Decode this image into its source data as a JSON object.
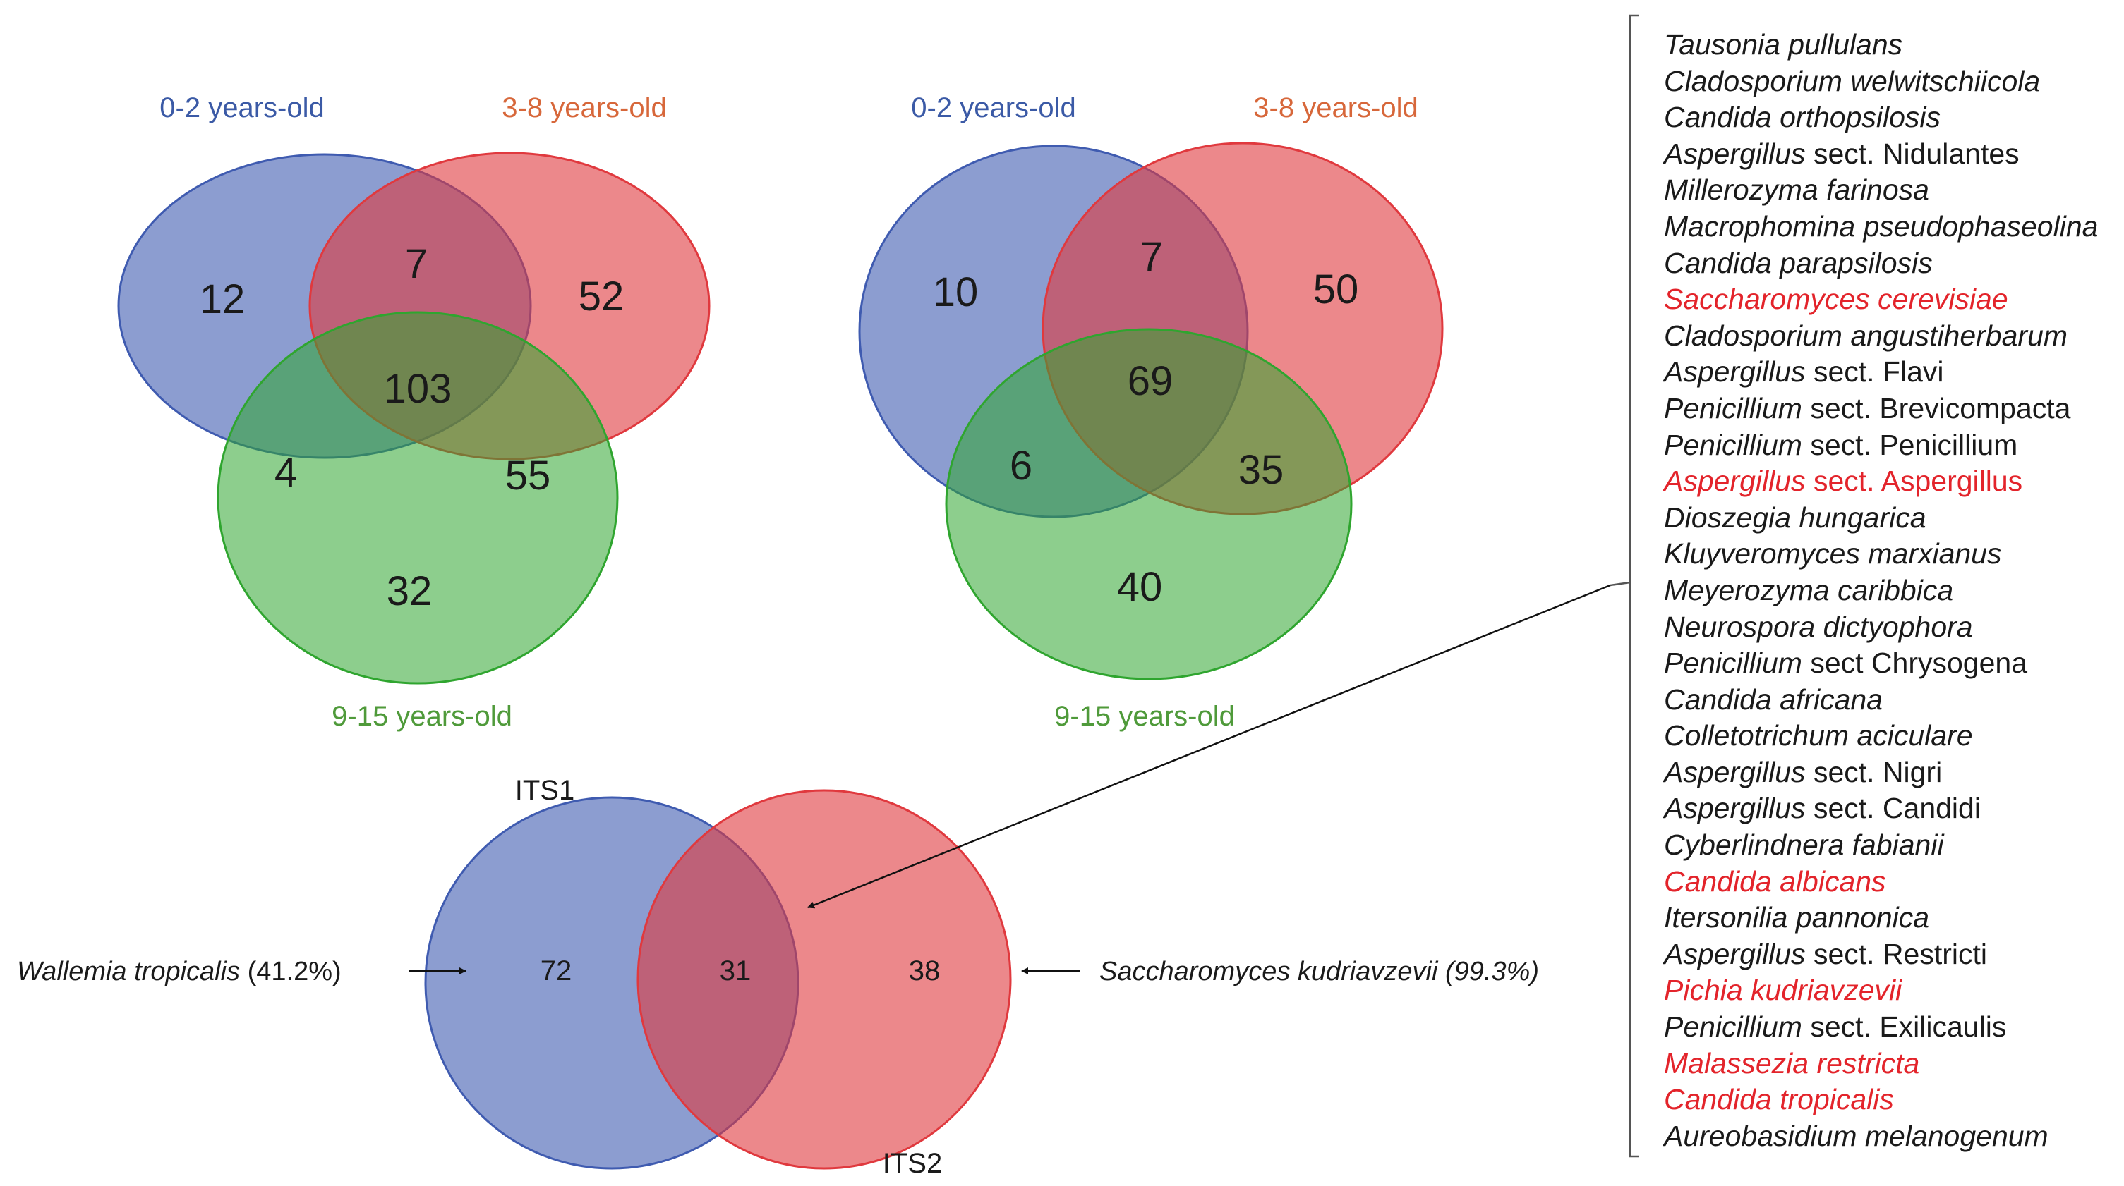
{
  "colors": {
    "blue": "#3f5bb0",
    "red": "#e0393e",
    "green": "#2fa52f",
    "blue_text": "#3b5aa6",
    "orange_text": "#d7673a",
    "green_text": "#4f9a3a",
    "highlight": "#e3242b"
  },
  "venn_left": {
    "labels": {
      "a": "0-2 years-old",
      "b": "3-8 years-old",
      "c": "9-15 years-old"
    },
    "counts": {
      "a_only": "12",
      "ab": "7",
      "b_only": "52",
      "abc": "103",
      "ac": "4",
      "bc": "55",
      "c_only": "32"
    }
  },
  "venn_right": {
    "labels": {
      "a": "0-2 years-old",
      "b": "3-8 years-old",
      "c": "9-15 years-old"
    },
    "counts": {
      "a_only": "10",
      "ab": "7",
      "b_only": "50",
      "abc": "69",
      "ac": "6",
      "bc": "35",
      "c_only": "40"
    }
  },
  "venn_bottom": {
    "labels": {
      "a": "ITS1",
      "b": "ITS2"
    },
    "counts": {
      "a_only": "72",
      "ab": "31",
      "b_only": "38"
    },
    "left_note": {
      "species": "Wallemia tropicalis",
      "pct": " (41.2%)"
    },
    "right_note": {
      "species": "Saccharomyces kudriavzevii (99.3%)"
    }
  },
  "species_list": [
    {
      "genus": "Tausonia pullulans",
      "rest": "",
      "highlight": false
    },
    {
      "genus": "Cladosporium welwitschiicola",
      "rest": "",
      "highlight": false
    },
    {
      "genus": "Candida orthopsilosis",
      "rest": "",
      "highlight": false
    },
    {
      "genus": "Aspergillus",
      "rest": " sect. Nidulantes",
      "highlight": false
    },
    {
      "genus": "Millerozyma farinosa",
      "rest": "",
      "highlight": false
    },
    {
      "genus": "Macrophomina pseudophaseolina",
      "rest": "",
      "highlight": false
    },
    {
      "genus": "Candida parapsilosis",
      "rest": "",
      "highlight": false
    },
    {
      "genus": "Saccharomyces cerevisiae",
      "rest": "",
      "highlight": true
    },
    {
      "genus": "Cladosporium angustiherbarum",
      "rest": "",
      "highlight": false
    },
    {
      "genus": "Aspergillus",
      "rest": " sect. Flavi",
      "highlight": false
    },
    {
      "genus": "Penicillium",
      "rest": " sect. Brevicompacta",
      "highlight": false
    },
    {
      "genus": "Penicillium",
      "rest": " sect. Penicillium",
      "highlight": false
    },
    {
      "genus": "Aspergillus",
      "rest": " sect. Aspergillus",
      "highlight": true
    },
    {
      "genus": "Dioszegia hungarica",
      "rest": "",
      "highlight": false
    },
    {
      "genus": "Kluyveromyces marxianus",
      "rest": "",
      "highlight": false
    },
    {
      "genus": "Meyerozyma caribbica",
      "rest": "",
      "highlight": false
    },
    {
      "genus": "Neurospora dictyophora",
      "rest": "",
      "highlight": false
    },
    {
      "genus": "Penicillium",
      "rest": " sect Chrysogena",
      "highlight": false
    },
    {
      "genus": "Candida africana",
      "rest": "",
      "highlight": false
    },
    {
      "genus": "Colletotrichum aciculare",
      "rest": "",
      "highlight": false
    },
    {
      "genus": "Aspergillus",
      "rest": " sect. Nigri",
      "highlight": false
    },
    {
      "genus": "Aspergillus",
      "rest": " sect. Candidi",
      "highlight": false
    },
    {
      "genus": "Cyberlindnera fabianii",
      "rest": "",
      "highlight": false
    },
    {
      "genus": "Candida albicans",
      "rest": "",
      "highlight": true
    },
    {
      "genus": "Itersonilia pannonica",
      "rest": "",
      "highlight": false
    },
    {
      "genus": "Aspergillus",
      "rest": " sect. Restricti",
      "highlight": false
    },
    {
      "genus": "Pichia kudriavzevii",
      "rest": "",
      "highlight": true
    },
    {
      "genus": "Penicillium",
      "rest": " sect. Exilicaulis",
      "highlight": false
    },
    {
      "genus": "Malassezia restricta",
      "rest": "",
      "highlight": true
    },
    {
      "genus": "Candida tropicalis",
      "rest": "",
      "highlight": true
    },
    {
      "genus": "Aureobasidium melanogenum",
      "rest": "",
      "highlight": false
    }
  ]
}
